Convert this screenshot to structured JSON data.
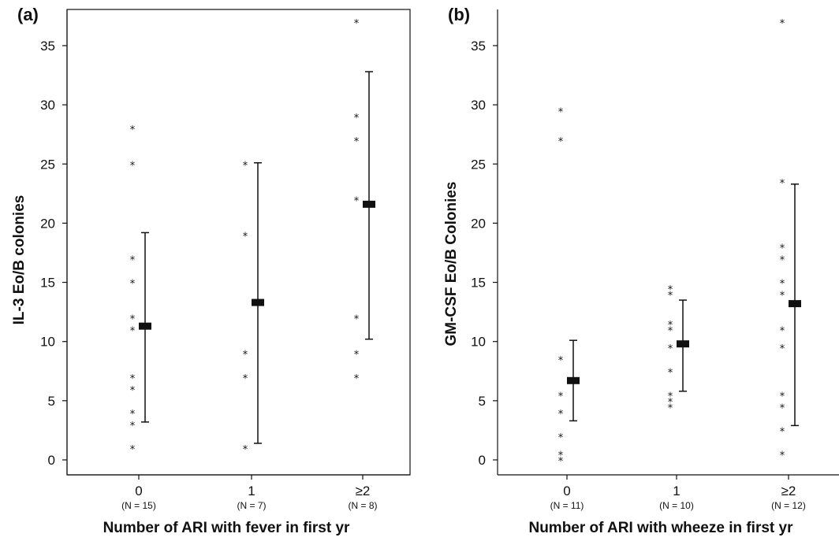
{
  "chart_data": [
    {
      "type": "scatter",
      "panel_label": "(a)",
      "title": "",
      "xlabel": "Number of ARI with fever in first yr",
      "ylabel": "IL-3 Eo/B colonies",
      "ylim": [
        0,
        36
      ],
      "yticks": [
        0,
        5,
        10,
        15,
        20,
        25,
        30,
        35
      ],
      "frame": "box",
      "grid": false,
      "legend": "none",
      "categories": [
        "0",
        "1",
        "≥2"
      ],
      "n_labels": [
        "(N = 15)",
        "(N = 7)",
        "(N = 8)"
      ],
      "points": [
        [
          1,
          3,
          4,
          6,
          7,
          11,
          12,
          15,
          17,
          25,
          28
        ],
        [
          1,
          7,
          9,
          19,
          25
        ],
        [
          7,
          9,
          12,
          22,
          27,
          29,
          37
        ]
      ],
      "means": [
        11.3,
        13.3,
        21.6
      ],
      "error_low": [
        3.2,
        1.4,
        10.2
      ],
      "error_high": [
        19.2,
        25.1,
        32.8
      ]
    },
    {
      "type": "scatter",
      "panel_label": "(b)",
      "title": "",
      "xlabel": "Number of ARI with wheeze in first yr",
      "ylabel": "GM-CSF Eo/B Colonies",
      "ylim": [
        0,
        36
      ],
      "yticks": [
        0,
        5,
        10,
        15,
        20,
        25,
        30,
        35
      ],
      "frame": "left-bottom",
      "grid": false,
      "legend": "none",
      "categories": [
        "0",
        "1",
        "≥2"
      ],
      "n_labels": [
        "(N = 11)",
        "(N = 10)",
        "(N = 12)"
      ],
      "points": [
        [
          0,
          0.5,
          2,
          4,
          5.5,
          8.5,
          27,
          29.5
        ],
        [
          4.5,
          5,
          5.5,
          7.5,
          9.5,
          11,
          11.5,
          14,
          14.5
        ],
        [
          0.5,
          2.5,
          4.5,
          5.5,
          9.5,
          11,
          14,
          15,
          17,
          18,
          23.5,
          37
        ]
      ],
      "means": [
        6.7,
        9.8,
        13.2
      ],
      "error_low": [
        3.3,
        5.8,
        2.9
      ],
      "error_high": [
        10.1,
        13.5,
        23.3
      ]
    }
  ]
}
